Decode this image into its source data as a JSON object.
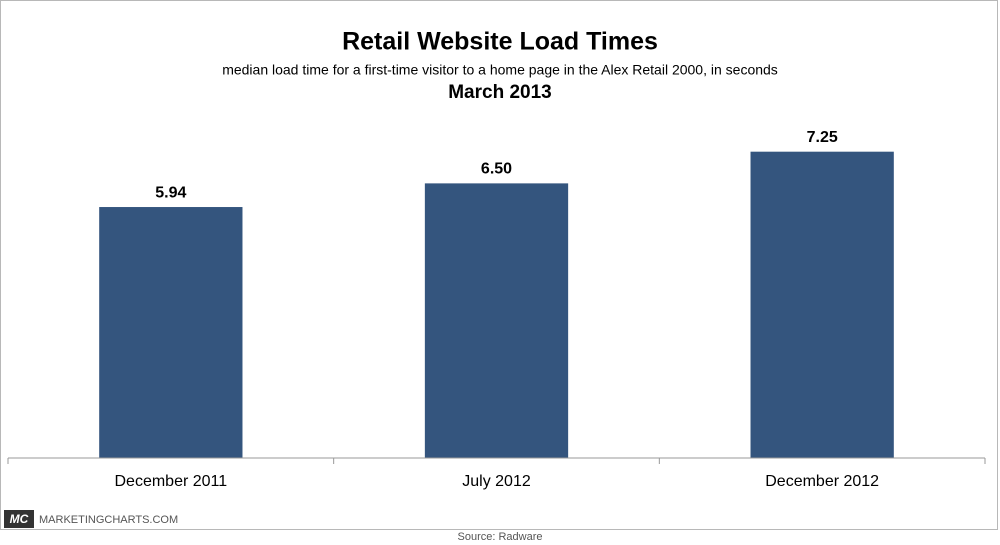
{
  "chart_data": {
    "type": "bar",
    "title": "Retail Website Load Times",
    "subtitle": "median load time for a first-time visitor to a home page in the Alex Retail 2000, in seconds",
    "date": "March 2013",
    "categories": [
      "December 2011",
      "July 2012",
      "December 2012"
    ],
    "values": [
      5.94,
      6.5,
      7.25
    ],
    "value_labels": [
      "5.94",
      "6.50",
      "7.25"
    ],
    "color": "#34557e",
    "ylim": [
      0,
      8
    ],
    "source": "Source: Radware",
    "logo": "MC",
    "brand": "MARKETINGCHARTS.COM"
  }
}
